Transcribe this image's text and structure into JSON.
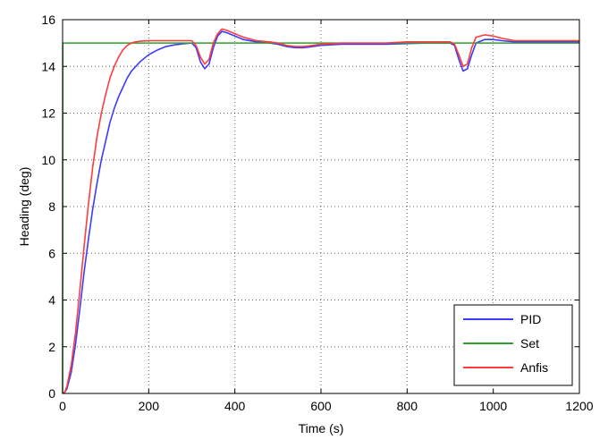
{
  "chart_data": {
    "type": "line",
    "title": "",
    "xlabel": "Time (s)",
    "ylabel": "Heading (deg)",
    "xlim": [
      0,
      1200
    ],
    "ylim": [
      0,
      16
    ],
    "xticks": [
      "0",
      "200",
      "400",
      "600",
      "800",
      "1000",
      "1200"
    ],
    "yticks": [
      "0",
      "2",
      "4",
      "6",
      "8",
      "10",
      "12",
      "14",
      "16"
    ],
    "grid": true,
    "legend_position": "bottom-right",
    "series": [
      {
        "name": "PID",
        "color": "#3b3bff",
        "x": [
          0,
          5,
          10,
          20,
          30,
          40,
          50,
          60,
          70,
          80,
          90,
          100,
          110,
          120,
          130,
          140,
          150,
          160,
          170,
          180,
          200,
          220,
          240,
          260,
          280,
          300,
          310,
          320,
          330,
          340,
          350,
          360,
          370,
          380,
          400,
          420,
          450,
          480,
          500,
          520,
          540,
          560,
          580,
          600,
          650,
          700,
          750,
          800,
          850,
          900,
          910,
          920,
          930,
          940,
          950,
          960,
          980,
          1000,
          1020,
          1050,
          1100,
          1150,
          1200
        ],
        "y": [
          0,
          0.05,
          0.2,
          0.9,
          2.1,
          3.6,
          5.2,
          6.6,
          7.9,
          9.0,
          10.0,
          10.8,
          11.6,
          12.2,
          12.7,
          13.1,
          13.5,
          13.8,
          14.0,
          14.2,
          14.5,
          14.7,
          14.85,
          14.92,
          14.97,
          15.0,
          14.8,
          14.2,
          13.9,
          14.1,
          14.8,
          15.3,
          15.5,
          15.45,
          15.3,
          15.15,
          15.05,
          15.0,
          14.95,
          14.85,
          14.8,
          14.8,
          14.85,
          14.9,
          14.95,
          14.95,
          14.95,
          14.98,
          15.0,
          15.0,
          14.9,
          14.3,
          13.8,
          13.9,
          14.5,
          15.0,
          15.15,
          15.15,
          15.1,
          15.05,
          15.05,
          15.05,
          15.05
        ]
      },
      {
        "name": "Set",
        "color": "#2e9e2e",
        "x": [
          0,
          0.5,
          1200
        ],
        "y": [
          0,
          15,
          15
        ]
      },
      {
        "name": "Anfis",
        "color": "#ff3b3b",
        "x": [
          0,
          5,
          10,
          20,
          30,
          40,
          50,
          60,
          70,
          80,
          90,
          100,
          110,
          120,
          130,
          140,
          150,
          160,
          170,
          180,
          200,
          220,
          240,
          260,
          280,
          300,
          310,
          320,
          330,
          340,
          350,
          360,
          370,
          380,
          400,
          420,
          450,
          480,
          500,
          520,
          540,
          560,
          580,
          600,
          650,
          700,
          750,
          800,
          850,
          900,
          910,
          920,
          930,
          940,
          950,
          960,
          980,
          1000,
          1020,
          1050,
          1100,
          1150,
          1200
        ],
        "y": [
          0,
          0.05,
          0.3,
          1.2,
          2.6,
          4.4,
          6.3,
          8.1,
          9.7,
          11.0,
          12.0,
          12.8,
          13.5,
          14.0,
          14.4,
          14.7,
          14.9,
          15.0,
          15.05,
          15.08,
          15.1,
          15.1,
          15.1,
          15.1,
          15.1,
          15.1,
          14.9,
          14.4,
          14.1,
          14.3,
          15.0,
          15.4,
          15.6,
          15.55,
          15.4,
          15.25,
          15.1,
          15.05,
          15.0,
          14.9,
          14.85,
          14.85,
          14.9,
          14.95,
          15.0,
          15.0,
          15.0,
          15.05,
          15.05,
          15.05,
          14.95,
          14.5,
          14.0,
          14.1,
          14.8,
          15.25,
          15.35,
          15.3,
          15.2,
          15.1,
          15.1,
          15.1,
          15.1
        ]
      }
    ]
  }
}
